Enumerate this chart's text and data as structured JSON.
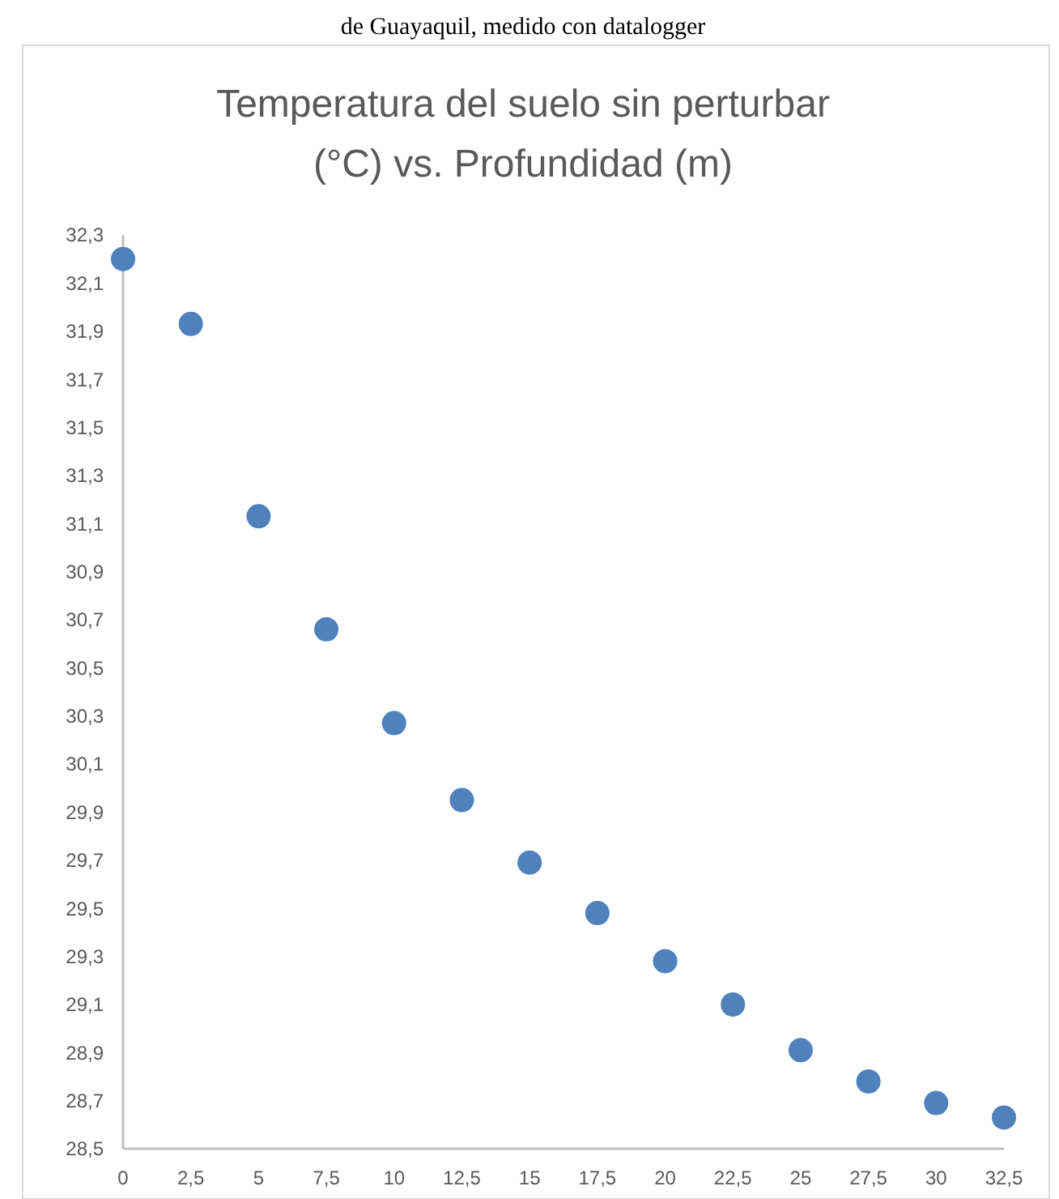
{
  "chart_data": {
    "type": "scatter",
    "title": "Temperatura del suelo sin perturbar (°C) vs. Profundidad (m)",
    "annotations": [
      "de Guayaquil, medido con datalogger"
    ],
    "x": [
      0,
      2.5,
      5,
      7.5,
      10,
      12.5,
      15,
      17.5,
      20,
      22.5,
      25,
      27.5,
      30,
      32.5
    ],
    "series": [
      {
        "color": "#4f81bd",
        "values": [
          32.2,
          31.93,
          31.13,
          30.66,
          30.27,
          29.95,
          29.69,
          29.48,
          29.28,
          29.1,
          28.91,
          28.78,
          28.69,
          28.63
        ]
      }
    ],
    "xlim": [
      0,
      32.5
    ],
    "xticks": [
      0,
      {
        "value": 2.5,
        "label": "2,5"
      },
      5,
      {
        "value": 7.5,
        "label": "7,5"
      },
      10,
      {
        "value": 12.5,
        "label": "12,5"
      },
      15,
      {
        "value": 17.5,
        "label": "17,5"
      },
      20,
      {
        "value": 22.5,
        "label": "22,5"
      },
      25,
      {
        "value": 27.5,
        "label": "27,5"
      },
      30,
      {
        "value": 32.5,
        "label": "32,5"
      }
    ],
    "ylim": [
      28.5,
      32.3
    ],
    "yticks": [
      {
        "value": 28.5,
        "label": "28,5"
      },
      {
        "value": 28.7,
        "label": "28,7"
      },
      {
        "value": 28.9,
        "label": "28,9"
      },
      {
        "value": 29.1,
        "label": "29,1"
      },
      {
        "value": 29.3,
        "label": "29,3"
      },
      {
        "value": 29.5,
        "label": "29,5"
      },
      {
        "value": 29.7,
        "label": "29,7"
      },
      {
        "value": 29.9,
        "label": "29,9"
      },
      {
        "value": 30.1,
        "label": "30,1"
      },
      {
        "value": 30.3,
        "label": "30,3"
      },
      {
        "value": 30.5,
        "label": "30,5"
      },
      {
        "value": 30.7,
        "label": "30,7"
      },
      {
        "value": 30.9,
        "label": "30,9"
      },
      {
        "value": 31.1,
        "label": "31,1"
      },
      {
        "value": 31.3,
        "label": "31,3"
      },
      {
        "value": 31.5,
        "label": "31,5"
      },
      {
        "value": 31.7,
        "label": "31,7"
      },
      {
        "value": 31.9,
        "label": "31,9"
      },
      {
        "value": 32.1,
        "label": "32,1"
      },
      {
        "value": 32.3,
        "label": "32,3"
      }
    ],
    "grid": false,
    "marker": "circle"
  }
}
